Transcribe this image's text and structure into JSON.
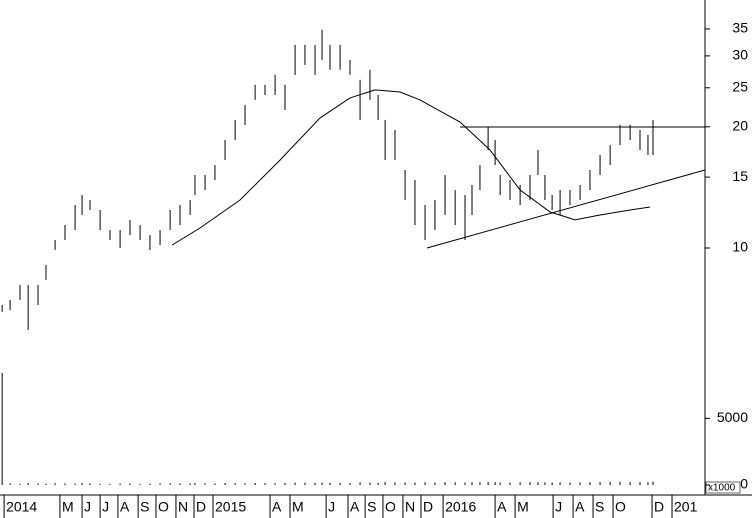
{
  "chart_data": {
    "type": "stock",
    "log_scale": true,
    "color": "#000000",
    "x": [
      1.18,
      1.59,
      2.1,
      2.52,
      3.03,
      3.44,
      3.91,
      4.42,
      4.94,
      5.3,
      5.71,
      6.23,
      6.74,
      7.26,
      7.77,
      8.29,
      8.8,
      9.32,
      9.84,
      10.35,
      10.87,
      11.12,
      11.64,
      12.15,
      12.67,
      13.19,
      13.7,
      14.22,
      14.73,
      15.25,
      15.76,
      16.28,
      16.79,
      17.31,
      17.67,
      18.08,
      18.6,
      19.11,
      19.63,
      20.14,
      20.56,
      20.92,
      21.43,
      21.95,
      22.46,
      22.98,
      23.49,
      24.01,
      24.53,
      25.04,
      25.4,
      25.81,
      26.23,
      26.59,
      26.85,
      27.36,
      27.88,
      28.39,
      28.8,
      29.16,
      29.53,
      29.94,
      30.45,
      30.97,
      31.48,
      32.0,
      32.52,
      33.03,
      33.55,
      34.06,
      34.47,
      34.73
    ],
    "high": [
      7.22,
      7.43,
      8.09,
      8.09,
      8.09,
      9.07,
      10.47,
      11.4,
      12.79,
      13.54,
      13.16,
      12.43,
      11.08,
      11.08,
      11.74,
      11.4,
      10.77,
      11.08,
      12.43,
      12.79,
      13.16,
      15.18,
      15.18,
      16.07,
      18.55,
      20.8,
      22.67,
      25.42,
      25.42,
      26.92,
      25.42,
      31.94,
      31.94,
      31.94,
      34.82,
      31.94,
      31.94,
      29.33,
      26.16,
      27.7,
      24.0,
      20.8,
      19.64,
      15.62,
      14.75,
      12.79,
      13.16,
      15.18,
      13.93,
      13.54,
      14.34,
      16.07,
      19.98,
      18.55,
      15.18,
      14.75,
      14.34,
      15.18,
      17.51,
      15.18,
      13.54,
      13.93,
      13.93,
      14.34,
      15.62,
      17.02,
      18.02,
      20.21,
      20.21,
      19.64,
      19.09,
      20.8
    ],
    "low": [
      6.94,
      7.01,
      7.43,
      6.26,
      7.22,
      8.33,
      9.89,
      10.47,
      11.08,
      12.08,
      12.43,
      11.08,
      10.47,
      10.0,
      10.77,
      10.47,
      9.89,
      10.17,
      11.08,
      11.4,
      12.08,
      13.54,
      13.93,
      14.75,
      16.54,
      18.55,
      20.21,
      23.33,
      24.0,
      24.0,
      22.03,
      26.92,
      28.5,
      26.92,
      29.33,
      27.7,
      27.7,
      26.92,
      20.8,
      23.33,
      20.8,
      16.54,
      16.54,
      13.16,
      11.4,
      10.47,
      11.08,
      12.08,
      11.4,
      10.47,
      12.08,
      13.93,
      17.51,
      16.07,
      13.54,
      13.16,
      12.79,
      13.16,
      15.18,
      13.16,
      12.43,
      12.08,
      12.79,
      13.16,
      13.93,
      15.18,
      16.07,
      18.02,
      18.55,
      17.51,
      17.02,
      17.02
    ],
    "volume": [
      8400,
      120,
      100,
      150,
      110,
      100,
      130,
      120,
      100,
      140,
      110,
      100,
      90,
      100,
      110,
      90,
      100,
      110,
      130,
      120,
      110,
      140,
      130,
      120,
      150,
      140,
      130,
      150,
      140,
      130,
      160,
      180,
      170,
      160,
      190,
      170,
      160,
      150,
      200,
      180,
      170,
      220,
      200,
      190,
      180,
      200,
      190,
      210,
      200,
      190,
      200,
      210,
      230,
      220,
      200,
      190,
      200,
      210,
      220,
      200,
      190,
      200,
      190,
      200,
      210,
      220,
      230,
      240,
      230,
      220,
      210,
      260
    ],
    "ma": {
      "x": [
        9.94,
        11.38,
        13.44,
        15.51,
        17.57,
        19.11,
        20.4,
        21.69,
        22.72,
        24.78,
        26.33,
        27.88,
        29.42,
        30.71,
        32.0,
        33.55,
        34.58
      ],
      "values": [
        10.17,
        11.21,
        13.16,
        16.54,
        21.04,
        23.59,
        24.7,
        24.41,
        23.33,
        20.56,
        17.51,
        13.93,
        12.29,
        11.74,
        12.08,
        12.43,
        12.64
      ]
    },
    "lines": [
      {
        "x": [
          23.08,
          37.41
        ],
        "values": [
          10.0,
          15.62
        ]
      },
      {
        "x": [
          24.78,
          37.41
        ],
        "values": [
          19.98,
          19.98
        ]
      }
    ],
    "xlim": [
      1.07,
      37.41
    ],
    "xticks": [
      {
        "value": 1.28,
        "label": "2014"
      },
      {
        "value": 4.16,
        "label": "M"
      },
      {
        "value": 5.3,
        "label": "J"
      },
      {
        "value": 6.23,
        "label": "J"
      },
      {
        "value": 7.15,
        "label": "A"
      },
      {
        "value": 8.19,
        "label": "S"
      },
      {
        "value": 9.11,
        "label": "O"
      },
      {
        "value": 10.14,
        "label": "N"
      },
      {
        "value": 11.07,
        "label": "D"
      },
      {
        "value": 12.05,
        "label": "2015"
      },
      {
        "value": 14.99,
        "label": "A"
      },
      {
        "value": 16.02,
        "label": "M"
      },
      {
        "value": 17.88,
        "label": "J"
      },
      {
        "value": 19.01,
        "label": "A"
      },
      {
        "value": 19.89,
        "label": "S"
      },
      {
        "value": 20.81,
        "label": "O"
      },
      {
        "value": 21.84,
        "label": "N"
      },
      {
        "value": 22.77,
        "label": "D"
      },
      {
        "value": 23.91,
        "label": "2016"
      },
      {
        "value": 26.59,
        "label": "A"
      },
      {
        "value": 27.62,
        "label": "M"
      },
      {
        "value": 29.58,
        "label": "J"
      },
      {
        "value": 30.61,
        "label": "A"
      },
      {
        "value": 31.64,
        "label": "S"
      },
      {
        "value": 32.67,
        "label": "O"
      },
      {
        "value": 34.68,
        "label": "D"
      },
      {
        "value": 35.71,
        "label": "201"
      }
    ],
    "ylim": [
      5.27,
      41.3
    ],
    "yticks": [
      10,
      15,
      20,
      25,
      30,
      35
    ],
    "volume_ylim": [
      0,
      9000
    ],
    "volume_yticks": [
      0,
      5000
    ],
    "volume_unit": "x1000"
  }
}
